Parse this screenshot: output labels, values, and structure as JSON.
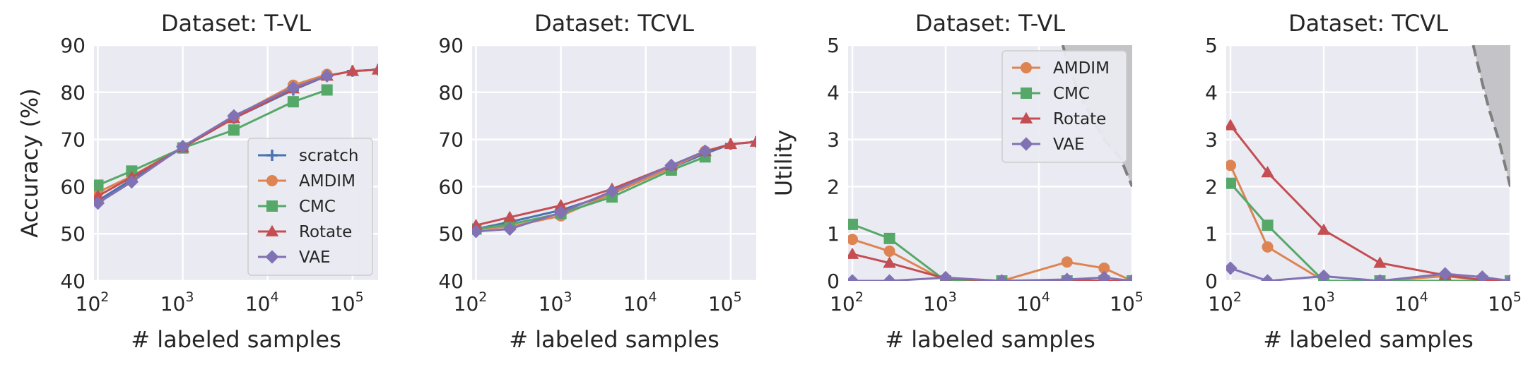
{
  "chart_data": [
    {
      "type": "line",
      "title": "Dataset: T-VL",
      "xlabel": "# labeled samples",
      "ylabel": "Accuracy (%)",
      "xscale": "log",
      "xlim": [
        90,
        200000
      ],
      "ylim": [
        40,
        90
      ],
      "xticks": [
        {
          "base": "10",
          "exp": "2"
        },
        {
          "base": "10",
          "exp": "3"
        },
        {
          "base": "10",
          "exp": "4"
        },
        {
          "base": "10",
          "exp": "5"
        }
      ],
      "yticks": [
        "40",
        "50",
        "60",
        "70",
        "80",
        "90"
      ],
      "grid": true,
      "legend": "lower-right",
      "series": [
        {
          "name": "scratch",
          "color": "#4c72b0",
          "marker": "plus",
          "x": [
            100,
            250,
            1000,
            4000,
            20000,
            50000,
            100000,
            200000
          ],
          "y": [
            57,
            61.5,
            68.3,
            74.5,
            80.5,
            83.5,
            84.5,
            84.8
          ]
        },
        {
          "name": "AMDIM",
          "color": "#dd8452",
          "marker": "circle",
          "x": [
            100,
            250,
            1000,
            4000,
            20000,
            50000
          ],
          "y": [
            58.8,
            62.2,
            68.3,
            74.8,
            81.5,
            83.8
          ]
        },
        {
          "name": "CMC",
          "color": "#55a868",
          "marker": "square",
          "x": [
            100,
            250,
            1000,
            4000,
            20000,
            50000
          ],
          "y": [
            60.3,
            63.3,
            68.2,
            72.0,
            78.0,
            80.5
          ]
        },
        {
          "name": "Rotate",
          "color": "#c44e52",
          "marker": "triangle",
          "x": [
            100,
            250,
            1000,
            4000,
            20000,
            50000,
            100000,
            200000
          ],
          "y": [
            58.0,
            62.0,
            68.3,
            74.5,
            80.8,
            83.5,
            84.5,
            84.8
          ]
        },
        {
          "name": "VAE",
          "color": "#8172b3",
          "marker": "diamond",
          "x": [
            100,
            250,
            1000,
            4000,
            20000,
            50000
          ],
          "y": [
            56.5,
            61.0,
            68.5,
            75.0,
            81.0,
            83.5
          ]
        }
      ]
    },
    {
      "type": "line",
      "title": "Dataset: TCVL",
      "xlabel": "# labeled samples",
      "ylabel": "",
      "xscale": "log",
      "xlim": [
        90,
        200000
      ],
      "ylim": [
        40,
        90
      ],
      "xticks": [
        {
          "base": "10",
          "exp": "2"
        },
        {
          "base": "10",
          "exp": "3"
        },
        {
          "base": "10",
          "exp": "4"
        },
        {
          "base": "10",
          "exp": "5"
        }
      ],
      "yticks": [
        "40",
        "50",
        "60",
        "70",
        "80",
        "90"
      ],
      "grid": true,
      "legend": "none",
      "series": [
        {
          "name": "scratch",
          "color": "#4c72b0",
          "marker": "plus",
          "x": [
            100,
            250,
            1000,
            4000,
            20000,
            50000,
            100000,
            200000
          ],
          "y": [
            51.0,
            52.5,
            55.0,
            58.5,
            64.0,
            67.0,
            69.0,
            69.5
          ]
        },
        {
          "name": "AMDIM",
          "color": "#dd8452",
          "marker": "circle",
          "x": [
            100,
            250,
            1000,
            4000,
            20000,
            50000
          ],
          "y": [
            51.0,
            51.5,
            53.8,
            58.5,
            64.0,
            67.5
          ]
        },
        {
          "name": "CMC",
          "color": "#55a868",
          "marker": "square",
          "x": [
            100,
            250,
            1000,
            4000,
            20000,
            50000
          ],
          "y": [
            51.0,
            52.0,
            54.3,
            57.8,
            63.5,
            66.3
          ]
        },
        {
          "name": "Rotate",
          "color": "#c44e52",
          "marker": "triangle",
          "x": [
            100,
            250,
            1000,
            4000,
            20000,
            50000,
            100000,
            200000
          ],
          "y": [
            51.8,
            53.5,
            56.0,
            59.5,
            64.5,
            67.5,
            69.0,
            69.5
          ]
        },
        {
          "name": "VAE",
          "color": "#8172b3",
          "marker": "diamond",
          "x": [
            100,
            250,
            1000,
            4000,
            20000,
            50000
          ],
          "y": [
            50.5,
            51.0,
            54.5,
            59.0,
            64.5,
            67.5
          ]
        }
      ]
    },
    {
      "type": "line",
      "title": "Dataset: T-VL",
      "xlabel": "# labeled samples",
      "ylabel": "Utility",
      "xscale": "log",
      "xlim": [
        90,
        100000
      ],
      "ylim": [
        0,
        5
      ],
      "xticks": [
        {
          "base": "10",
          "exp": "2"
        },
        {
          "base": "10",
          "exp": "3"
        },
        {
          "base": "10",
          "exp": "4"
        },
        {
          "base": "10",
          "exp": "5"
        }
      ],
      "yticks": [
        "0",
        "1",
        "2",
        "3",
        "4",
        "5"
      ],
      "grid": true,
      "legend": "upper-right",
      "shaded_region": {
        "x": [
          18000,
          22000,
          30000,
          50000,
          75000,
          100000
        ],
        "y": [
          5,
          4.4,
          3.8,
          3.0,
          2.6,
          2.0
        ]
      },
      "series": [
        {
          "name": "AMDIM",
          "color": "#dd8452",
          "marker": "circle",
          "x": [
            100,
            250,
            1000,
            4000,
            20000,
            50000,
            100000
          ],
          "y": [
            0.88,
            0.63,
            0.0,
            0.0,
            0.4,
            0.27,
            0.0
          ]
        },
        {
          "name": "CMC",
          "color": "#55a868",
          "marker": "square",
          "x": [
            100,
            250,
            1000,
            4000,
            20000,
            50000,
            100000
          ],
          "y": [
            1.2,
            0.9,
            0.0,
            0.0,
            0.0,
            0.0,
            0.0
          ]
        },
        {
          "name": "Rotate",
          "color": "#c44e52",
          "marker": "triangle",
          "x": [
            100,
            250,
            1000,
            4000,
            20000,
            50000,
            100000
          ],
          "y": [
            0.57,
            0.38,
            0.05,
            0.0,
            0.02,
            0.0,
            0.0
          ]
        },
        {
          "name": "VAE",
          "color": "#8172b3",
          "marker": "diamond",
          "x": [
            100,
            250,
            1000,
            4000,
            20000,
            50000,
            100000
          ],
          "y": [
            0.0,
            0.0,
            0.07,
            0.0,
            0.03,
            0.07,
            0.0
          ]
        }
      ]
    },
    {
      "type": "line",
      "title": "Dataset: TCVL",
      "xlabel": "# labeled samples",
      "ylabel": "",
      "xscale": "log",
      "xlim": [
        90,
        100000
      ],
      "ylim": [
        0,
        5
      ],
      "xticks": [
        {
          "base": "10",
          "exp": "2"
        },
        {
          "base": "10",
          "exp": "3"
        },
        {
          "base": "10",
          "exp": "4"
        },
        {
          "base": "10",
          "exp": "5"
        }
      ],
      "yticks": [
        "0",
        "1",
        "2",
        "3",
        "4",
        "5"
      ],
      "grid": true,
      "legend": "none",
      "shaded_region": {
        "x": [
          40000,
          50000,
          60000,
          75000,
          100000
        ],
        "y": [
          5,
          4.2,
          3.6,
          3.0,
          2.0
        ]
      },
      "series": [
        {
          "name": "AMDIM",
          "color": "#dd8452",
          "marker": "circle",
          "x": [
            100,
            250,
            1000,
            4000,
            20000,
            50000,
            100000
          ],
          "y": [
            2.45,
            0.72,
            0.0,
            0.0,
            0.1,
            0.02,
            0.0
          ]
        },
        {
          "name": "CMC",
          "color": "#55a868",
          "marker": "square",
          "x": [
            100,
            250,
            1000,
            4000,
            20000,
            50000,
            100000
          ],
          "y": [
            2.07,
            1.18,
            0.0,
            0.0,
            0.0,
            0.0,
            0.0
          ]
        },
        {
          "name": "Rotate",
          "color": "#c44e52",
          "marker": "triangle",
          "x": [
            100,
            250,
            1000,
            4000,
            20000,
            50000,
            100000
          ],
          "y": [
            3.3,
            2.3,
            1.08,
            0.38,
            0.12,
            0.02,
            0.0
          ]
        },
        {
          "name": "VAE",
          "color": "#8172b3",
          "marker": "diamond",
          "x": [
            100,
            250,
            1000,
            4000,
            20000,
            50000,
            100000
          ],
          "y": [
            0.27,
            0.0,
            0.1,
            0.0,
            0.15,
            0.08,
            0.0
          ]
        }
      ]
    }
  ]
}
